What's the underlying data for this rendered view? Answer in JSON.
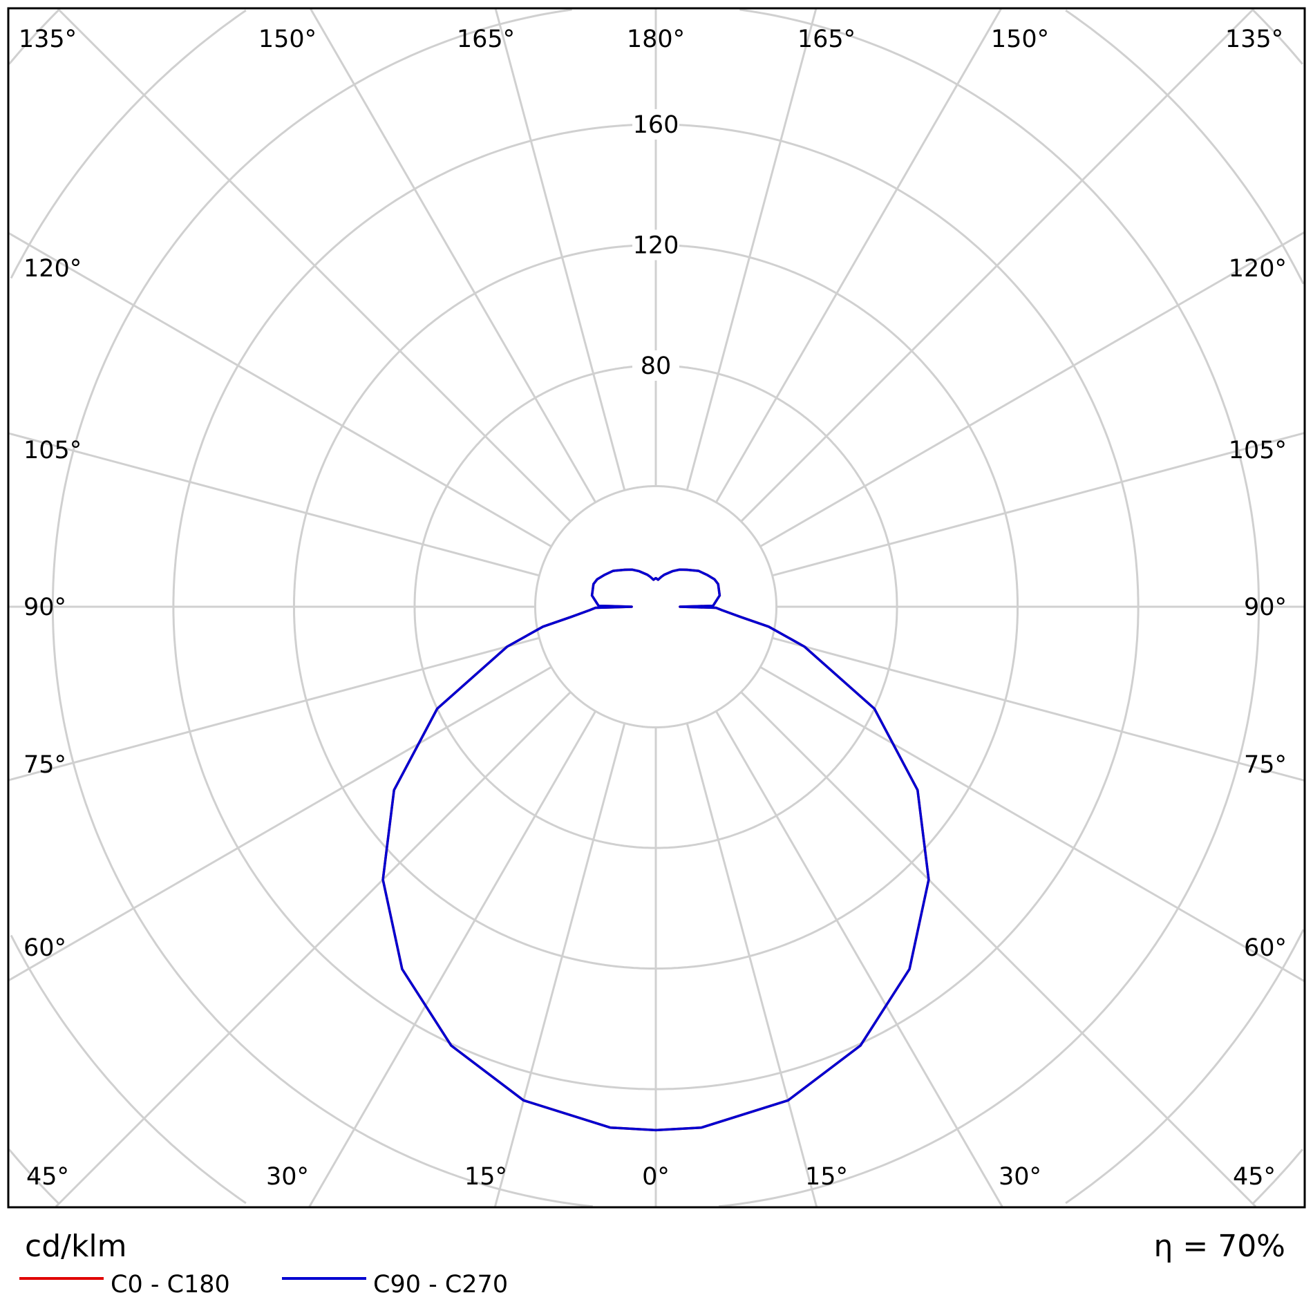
{
  "chart_data": {
    "type": "polar",
    "unit_label": "cd/klm",
    "efficiency_label": "η = 70%",
    "radial_ticks": [
      80,
      120,
      160
    ],
    "radial_grid": [
      40,
      80,
      120,
      160,
      200,
      240,
      280
    ],
    "angle_labels": {
      "top": [
        "135°",
        "150°",
        "165°",
        "180°",
        "165°",
        "150°",
        "135°"
      ],
      "left": [
        "120°",
        "105°",
        "90°",
        "75°",
        "60°"
      ],
      "right": [
        "120°",
        "105°",
        "90°",
        "75°",
        "60°"
      ],
      "bottom": [
        "45°",
        "30°",
        "15°",
        "0°",
        "15°",
        "30°",
        "45°"
      ]
    },
    "grid": true,
    "legend_placement": "bottom-left",
    "series": [
      {
        "name": "C0 - C180",
        "color": "#e00000",
        "gamma": [
          0,
          5,
          15,
          25,
          35,
          45,
          55,
          65,
          75,
          80,
          83,
          87,
          89,
          90,
          91,
          100,
          110,
          115,
          122,
          130,
          140,
          147.5,
          155,
          165,
          170,
          175,
          180
        ],
        "values": [
          173.6,
          173.4,
          169.5,
          160.6,
          146.7,
          128,
          106,
          80,
          51,
          38,
          28.6,
          22,
          20,
          8,
          19,
          21.5,
          22,
          21.5,
          20,
          18.5,
          16,
          14.6,
          13,
          11,
          10,
          9,
          9.5
        ]
      },
      {
        "name": "C90 - C270",
        "color": "#0000d0",
        "gamma": [
          0,
          5,
          15,
          25,
          35,
          45,
          55,
          65,
          75,
          80,
          83,
          87,
          89,
          90,
          91,
          100,
          110,
          115,
          122,
          130,
          140,
          147.5,
          155,
          165,
          170,
          175,
          180
        ],
        "values": [
          173.6,
          173.4,
          169.5,
          160.6,
          146.7,
          128,
          106,
          80,
          51,
          38,
          28.6,
          22,
          20,
          8,
          19,
          21.5,
          22,
          21.5,
          20,
          18.5,
          16,
          14.6,
          13,
          11,
          10,
          9,
          9.5
        ]
      }
    ]
  }
}
